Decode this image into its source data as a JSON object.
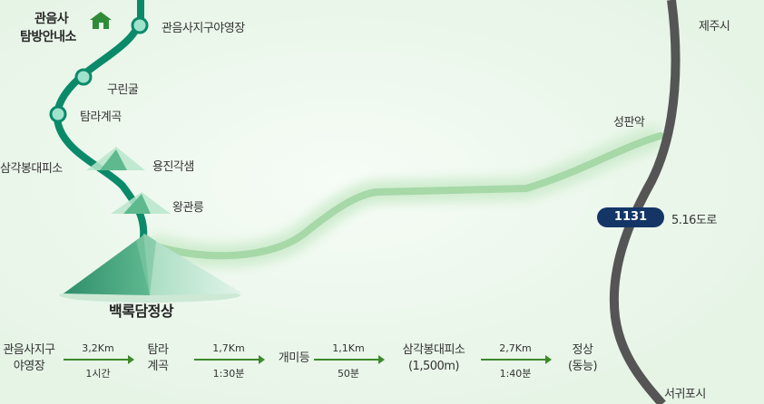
{
  "map": {
    "places": {
      "gwaneumsa_info_line1": "관음사",
      "gwaneumsa_info_line2": "탐방안내소",
      "campsite": "관음사지구야영장",
      "gurin_cave": "구린굴",
      "tamra_valley": "탐라계곡",
      "samgak_shelter": "삼각봉대피소",
      "yongjin_spring": "용진각샘",
      "wanggwan_peak": "왕관릉",
      "baengnokdam_summit": "백록담정상",
      "seongpanak": "성판악",
      "jeju_city": "제주시",
      "seogwipo_city": "서귀포시",
      "road_516": "5.16도로"
    },
    "road_badge": "1131",
    "colors": {
      "trail": "#0b8a6a",
      "other_trail": "#a6d8a8",
      "road": "#555555",
      "badge": "#143566",
      "mountain": "#3fa37f"
    },
    "icons": [
      "house-icon",
      "waypoint-icon",
      "mountain-icon"
    ]
  },
  "route": {
    "steps": [
      {
        "line1": "관음사지구",
        "line2": "야영장"
      },
      {
        "line1": "탐라",
        "line2": "계곡"
      },
      {
        "line1": "개미등",
        "line2": ""
      },
      {
        "line1": "삼각봉대피소",
        "line2": "(1,500m)"
      },
      {
        "line1": "정상",
        "line2": "(동능)"
      }
    ],
    "segments": [
      {
        "distance": "3,2Km",
        "time": "1시간"
      },
      {
        "distance": "1,7Km",
        "time": "1:30분"
      },
      {
        "distance": "1,1Km",
        "time": "50분"
      },
      {
        "distance": "2,7Km",
        "time": "1:40분"
      }
    ]
  }
}
